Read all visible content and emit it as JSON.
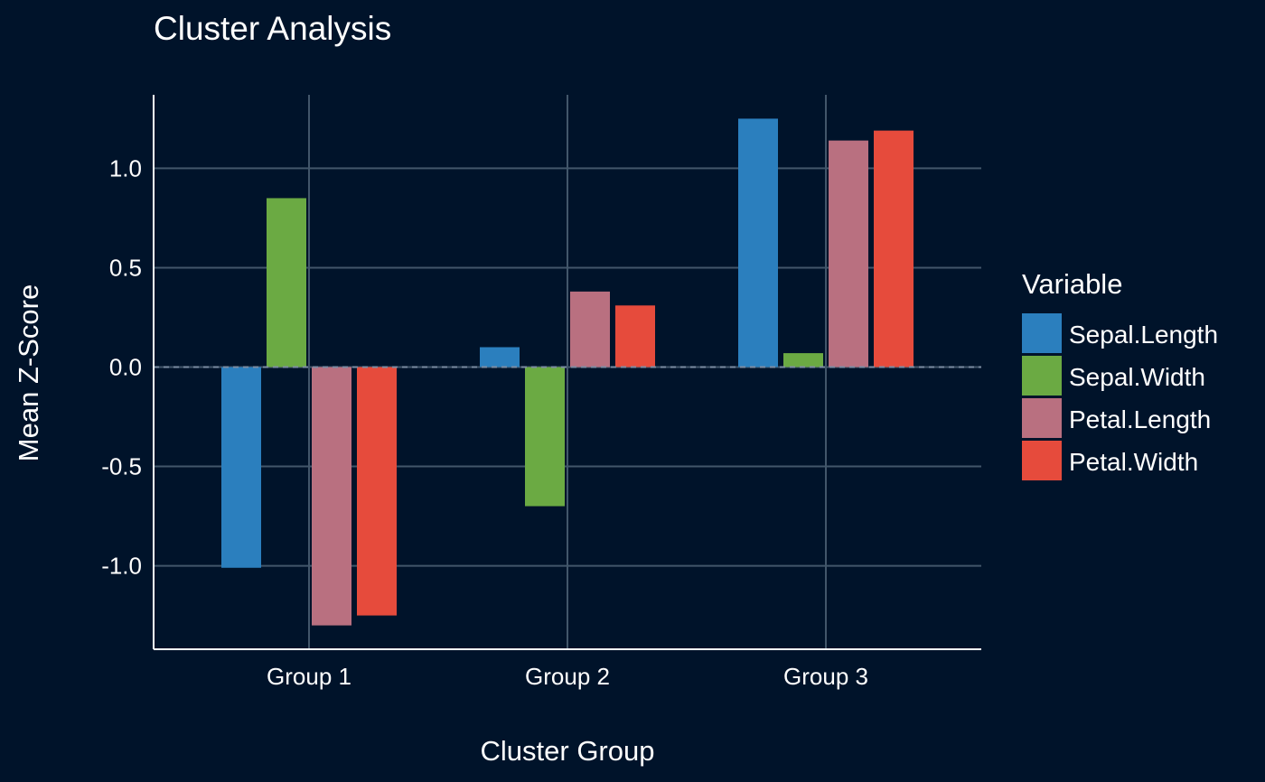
{
  "chart_data": {
    "type": "bar",
    "title": "Cluster Analysis",
    "xlabel": "Cluster Group",
    "ylabel": "Mean Z-Score",
    "categories": [
      "Group 1",
      "Group 2",
      "Group 3"
    ],
    "series": [
      {
        "name": "Sepal.Length",
        "values": [
          -1.01,
          0.1,
          1.25
        ]
      },
      {
        "name": "Sepal.Width",
        "values": [
          0.85,
          -0.7,
          0.07
        ]
      },
      {
        "name": "Petal.Length",
        "values": [
          -1.3,
          0.38,
          1.14
        ]
      },
      {
        "name": "Petal.Width",
        "values": [
          -1.25,
          0.31,
          1.19
        ]
      }
    ],
    "yticks": [
      -1.0,
      -0.5,
      0.0,
      0.5,
      1.0
    ],
    "ytick_labels": [
      "-1.0",
      "-0.5",
      "0.0",
      "0.5",
      "1.0"
    ],
    "ylim": [
      -1.42,
      1.37
    ],
    "grid": true,
    "reference_line": 0,
    "legend": {
      "title": "Variable",
      "position": "right"
    },
    "colors": {
      "background": "#00132A",
      "grid": "#42566A",
      "axis": "#FFFFFF",
      "text": "#FFFFFF",
      "reference": "#7D8CA3",
      "series": [
        "#2B7FBE",
        "#6BAA43",
        "#B97080",
        "#E64B3C"
      ]
    }
  }
}
